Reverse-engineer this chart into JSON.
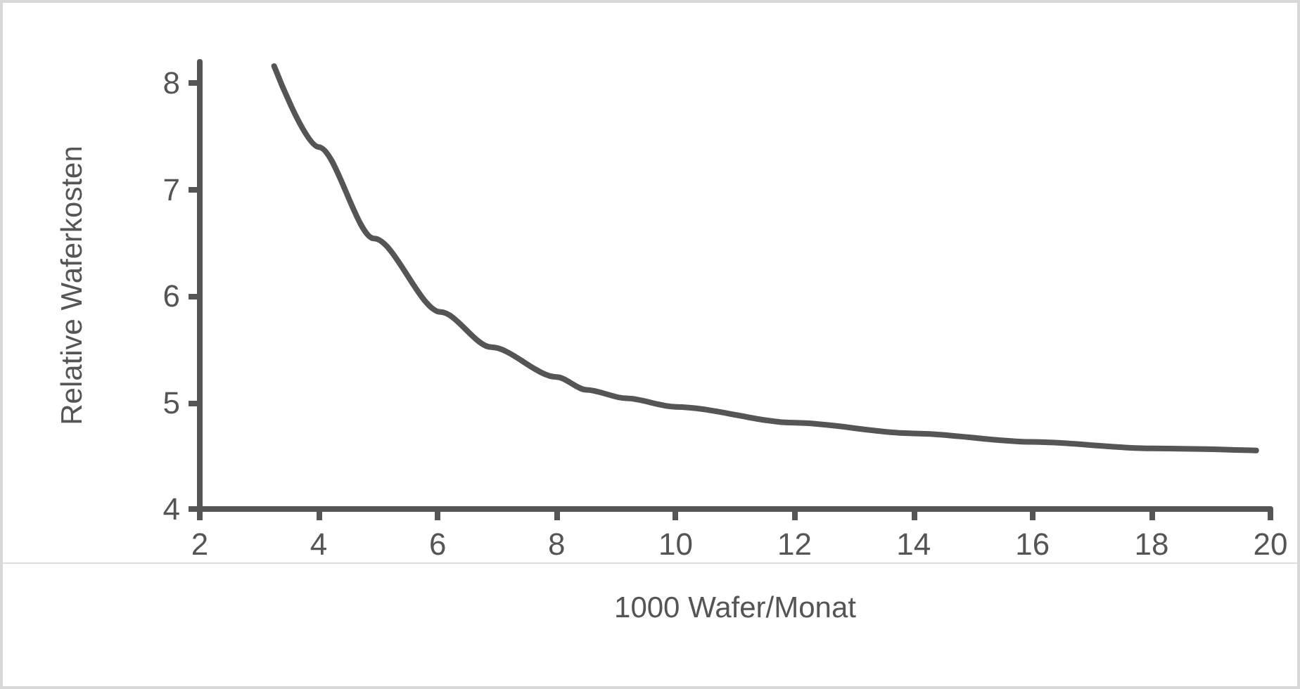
{
  "chart_data": {
    "type": "line",
    "xlabel": "1000 Wafer/Monat",
    "ylabel": "Relative Waferkosten",
    "series": [
      {
        "color": "#555555",
        "x": [
          3.25,
          4,
          4.93,
          6.05,
          6.9,
          8,
          8.5,
          9.17,
          10,
          12,
          14,
          16,
          18,
          19.76
        ],
        "values": [
          8.16,
          7.4,
          6.54,
          5.85,
          5.52,
          5.24,
          5.12,
          5.04,
          4.96,
          4.81,
          4.71,
          4.63,
          4.57,
          4.55
        ]
      }
    ],
    "xlim": [
      2,
      20
    ],
    "xticks": [
      2,
      4,
      6,
      8,
      10,
      12,
      14,
      16,
      18,
      20
    ],
    "ylim": [
      4,
      8.2
    ],
    "yticks": [
      4,
      5,
      6,
      7,
      8
    ],
    "marker": "none",
    "line_style": "solid"
  }
}
